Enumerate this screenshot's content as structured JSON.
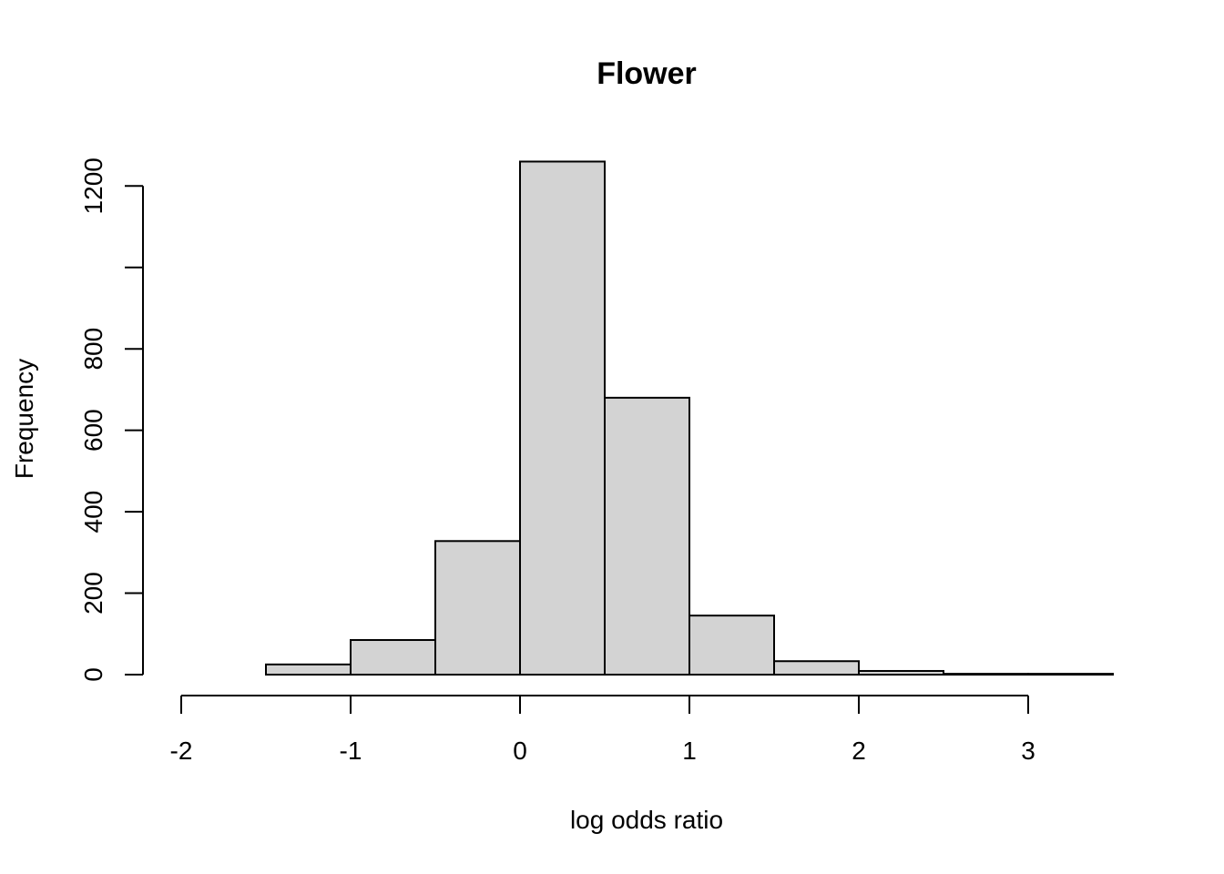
{
  "chart_data": {
    "type": "bar",
    "subtype": "histogram",
    "title": "Flower",
    "xlabel": "log odds ratio",
    "ylabel": "Frequency",
    "bins": [
      {
        "from": -2.0,
        "to": -1.5,
        "count": 0
      },
      {
        "from": -1.5,
        "to": -1.0,
        "count": 25
      },
      {
        "from": -1.0,
        "to": -0.5,
        "count": 85
      },
      {
        "from": -0.5,
        "to": 0.0,
        "count": 328
      },
      {
        "from": 0.0,
        "to": 0.5,
        "count": 1260
      },
      {
        "from": 0.5,
        "to": 1.0,
        "count": 680
      },
      {
        "from": 1.0,
        "to": 1.5,
        "count": 145
      },
      {
        "from": 1.5,
        "to": 2.0,
        "count": 33
      },
      {
        "from": 2.0,
        "to": 2.5,
        "count": 9
      },
      {
        "from": 2.5,
        "to": 3.0,
        "count": 2
      },
      {
        "from": 3.0,
        "to": 3.5,
        "count": 2
      }
    ],
    "xticks": [
      -2,
      -1,
      0,
      1,
      2,
      3
    ],
    "yticks": [
      0,
      200,
      400,
      600,
      800,
      1000,
      1200
    ],
    "ytick_labels": [
      "0",
      "200",
      "400",
      "600",
      "800",
      "",
      "1200"
    ],
    "xlim": [
      -2,
      3.5
    ],
    "ylim": [
      0,
      1260
    ],
    "bar_color": "#d3d3d3",
    "edge_color": "#000000",
    "grid": false
  }
}
